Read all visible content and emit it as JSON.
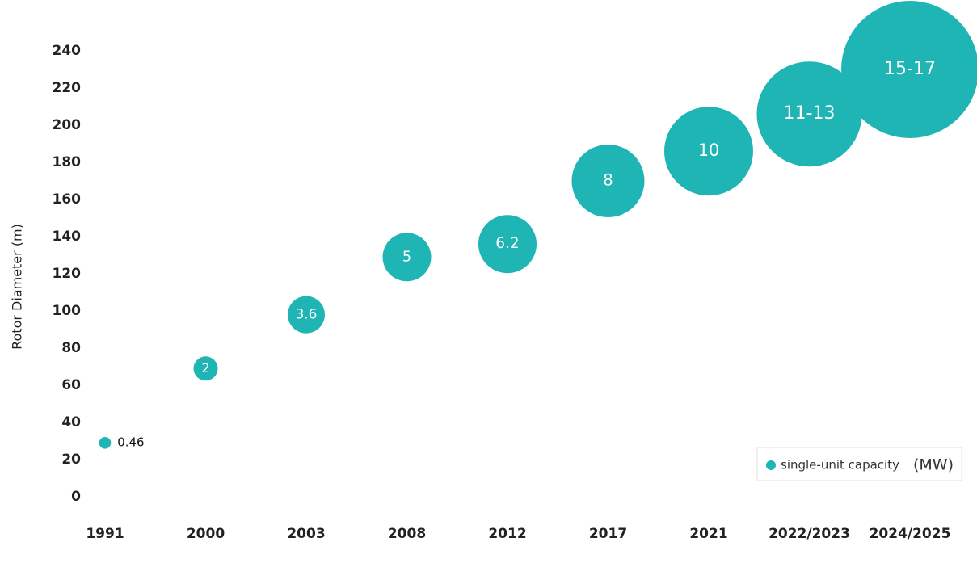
{
  "chart_data": {
    "type": "bubble",
    "y_label": "Rotor Diameter (m)",
    "categories": [
      "1991",
      "2000",
      "2003",
      "2008",
      "2012",
      "2017",
      "2021",
      "2022/2023",
      "2024/2025"
    ],
    "series": [
      {
        "name": "single-unit capacity",
        "legend_unit": "(MW)",
        "color": "#1fb5b5",
        "values": [
          29,
          69,
          98,
          129,
          136,
          170,
          186,
          206,
          230
        ],
        "sizes": [
          0.46,
          2,
          3.6,
          5,
          6.2,
          8,
          10,
          12,
          16
        ],
        "size_labels": [
          "0.46",
          "2",
          "3.6",
          "5",
          "6.2",
          "8",
          "10",
          "11-13",
          "15-17"
        ]
      }
    ],
    "ylim": [
      0,
      240
    ],
    "yticks": [
      0,
      20,
      40,
      60,
      80,
      100,
      120,
      140,
      160,
      180,
      200,
      220,
      240
    ],
    "grid": false,
    "legend": "lower right"
  }
}
